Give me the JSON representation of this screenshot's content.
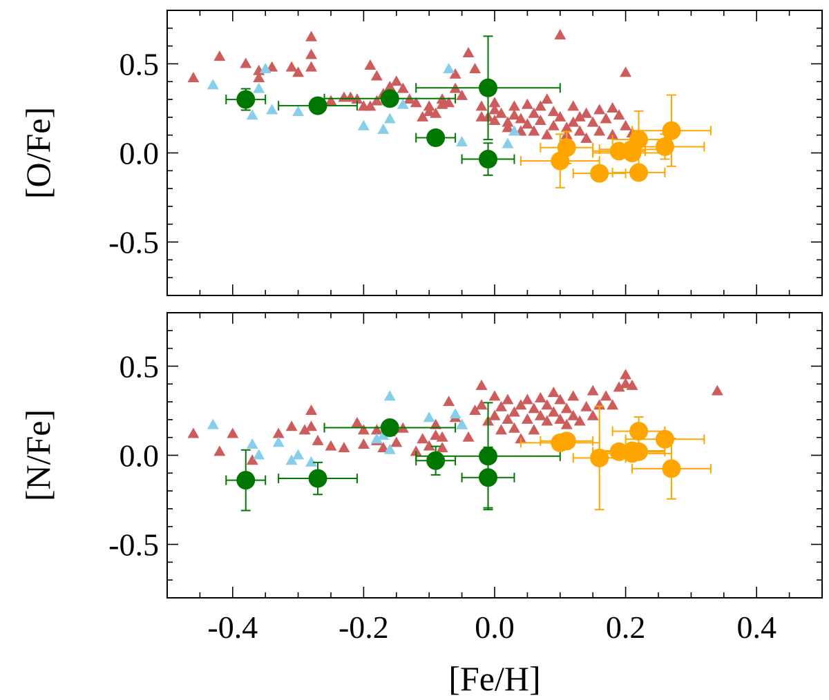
{
  "chart_data": [
    {
      "type": "scatter",
      "ylabel": "[O/Fe]",
      "xlabel": "",
      "xlim": [
        -0.5,
        0.5
      ],
      "ylim": [
        -0.8,
        0.8
      ],
      "x_ticks": [
        "-0.4",
        "-0.2",
        "0.0",
        "0.2",
        "0.4"
      ],
      "y_ticks": [
        "0.5",
        "0.0",
        "-0.5"
      ],
      "y_tick_values": [
        0.5,
        0.0,
        -0.5
      ],
      "series": [
        {
          "marker": "triangle",
          "color": "#cd5c5c",
          "points": [
            [
              -0.46,
              0.42
            ],
            [
              -0.42,
              0.54
            ],
            [
              -0.38,
              0.5
            ],
            [
              -0.36,
              0.46
            ],
            [
              -0.36,
              0.42
            ],
            [
              -0.34,
              0.48
            ],
            [
              -0.31,
              0.48
            ],
            [
              -0.3,
              0.45
            ],
            [
              -0.28,
              0.65
            ],
            [
              -0.28,
              0.55
            ],
            [
              -0.28,
              0.48
            ],
            [
              -0.25,
              0.29
            ],
            [
              -0.23,
              0.31
            ],
            [
              -0.22,
              0.31
            ],
            [
              -0.21,
              0.3
            ],
            [
              -0.2,
              0.26
            ],
            [
              -0.19,
              0.49
            ],
            [
              -0.19,
              0.26
            ],
            [
              -0.18,
              0.43
            ],
            [
              -0.18,
              0.29
            ],
            [
              -0.17,
              0.33
            ],
            [
              -0.16,
              0.37
            ],
            [
              -0.15,
              0.4
            ],
            [
              -0.14,
              0.36
            ],
            [
              -0.13,
              0.3
            ],
            [
              -0.12,
              0.28
            ],
            [
              -0.11,
              0.2
            ],
            [
              -0.1,
              0.26
            ],
            [
              -0.1,
              0.23
            ],
            [
              -0.09,
              0.22
            ],
            [
              -0.08,
              0.3
            ],
            [
              -0.08,
              0.27
            ],
            [
              -0.07,
              0.28
            ],
            [
              -0.06,
              0.44
            ],
            [
              -0.06,
              0.36
            ],
            [
              -0.05,
              0.32
            ],
            [
              -0.04,
              0.56
            ],
            [
              -0.03,
              0.47
            ],
            [
              -0.02,
              0.26
            ],
            [
              -0.02,
              0.2
            ],
            [
              -0.01,
              0.2
            ],
            [
              0.0,
              0.28
            ],
            [
              0.0,
              0.24
            ],
            [
              0.0,
              0.18
            ],
            [
              0.01,
              0.22
            ],
            [
              0.02,
              0.14
            ],
            [
              0.02,
              0.17
            ],
            [
              0.03,
              0.26
            ],
            [
              0.03,
              0.21
            ],
            [
              0.04,
              0.12
            ],
            [
              0.04,
              0.19
            ],
            [
              0.05,
              0.27
            ],
            [
              0.05,
              0.16
            ],
            [
              0.06,
              0.22
            ],
            [
              0.06,
              0.12
            ],
            [
              0.07,
              0.26
            ],
            [
              0.07,
              0.18
            ],
            [
              0.08,
              0.3
            ],
            [
              0.08,
              0.1
            ],
            [
              0.09,
              0.23
            ],
            [
              0.09,
              0.15
            ],
            [
              0.1,
              0.66
            ],
            [
              0.1,
              0.2
            ],
            [
              0.11,
              0.14
            ],
            [
              0.11,
              0.1
            ],
            [
              0.12,
              0.26
            ],
            [
              0.12,
              0.17
            ],
            [
              0.13,
              0.2
            ],
            [
              0.13,
              0.12
            ],
            [
              0.14,
              0.22
            ],
            [
              0.14,
              0.08
            ],
            [
              0.15,
              0.17
            ],
            [
              0.16,
              0.24
            ],
            [
              0.16,
              0.12
            ],
            [
              0.17,
              0.19
            ],
            [
              0.18,
              0.25
            ],
            [
              0.18,
              0.1
            ],
            [
              0.19,
              0.21
            ],
            [
              0.2,
              0.45
            ],
            [
              0.2,
              0.15
            ],
            [
              0.21,
              0.11
            ]
          ]
        },
        {
          "marker": "triangle",
          "color": "#87ceeb",
          "points": [
            [
              -0.43,
              0.38
            ],
            [
              -0.37,
              0.21
            ],
            [
              -0.36,
              0.36
            ],
            [
              -0.35,
              0.47
            ],
            [
              -0.34,
              0.24
            ],
            [
              -0.3,
              0.23
            ],
            [
              -0.2,
              0.15
            ],
            [
              -0.17,
              0.13
            ],
            [
              -0.16,
              0.19
            ],
            [
              -0.14,
              0.27
            ],
            [
              -0.07,
              0.47
            ],
            [
              -0.05,
              0.06
            ],
            [
              0.02,
              0.05
            ],
            [
              0.03,
              0.12
            ]
          ]
        },
        {
          "marker": "circle",
          "color": "#007700",
          "points": [
            {
              "x": -0.38,
              "y": 0.3,
              "xerr": 0.03,
              "yerr": 0.06
            },
            {
              "x": -0.27,
              "y": 0.265,
              "xerr": 0.06,
              "yerr": 0.0
            },
            {
              "x": -0.16,
              "y": 0.305,
              "xerr": 0.1,
              "yerr": 0.0
            },
            {
              "x": -0.09,
              "y": 0.085,
              "xerr": 0.03,
              "yerr": 0.0
            },
            {
              "x": -0.01,
              "y": 0.365,
              "xerr": 0.11,
              "yerr": 0.29
            },
            {
              "x": -0.01,
              "y": -0.035,
              "xerr": 0.04,
              "yerr": 0.09
            }
          ]
        },
        {
          "marker": "circle",
          "color": "#ffa500",
          "points": [
            {
              "x": 0.1,
              "y": -0.045,
              "xerr": 0.06,
              "yerr": 0.15
            },
            {
              "x": 0.11,
              "y": 0.03,
              "xerr": 0.04,
              "yerr": 0.09
            },
            {
              "x": 0.16,
              "y": -0.115,
              "xerr": 0.04,
              "yerr": 0.0
            },
            {
              "x": 0.19,
              "y": 0.01,
              "xerr": 0.04,
              "yerr": 0.0
            },
            {
              "x": 0.21,
              "y": 0.02,
              "xerr": 0.05,
              "yerr": 0.0
            },
            {
              "x": 0.21,
              "y": 0.0,
              "xerr": 0.06,
              "yerr": 0.0
            },
            {
              "x": 0.22,
              "y": 0.075,
              "xerr": 0.04,
              "yerr": 0.16
            },
            {
              "x": 0.22,
              "y": -0.11,
              "xerr": 0.04,
              "yerr": 0.04
            },
            {
              "x": 0.26,
              "y": 0.035,
              "xerr": 0.06,
              "yerr": 0.07
            },
            {
              "x": 0.27,
              "y": 0.125,
              "xerr": 0.06,
              "yerr": 0.2
            }
          ]
        }
      ]
    },
    {
      "type": "scatter",
      "ylabel": "[N/Fe]",
      "xlabel": "[Fe/H]",
      "xlim": [
        -0.5,
        0.5
      ],
      "ylim": [
        -0.8,
        0.8
      ],
      "x_ticks": [
        "-0.4",
        "-0.2",
        "0.0",
        "0.2",
        "0.4"
      ],
      "y_ticks": [
        "0.5",
        "0.0",
        "-0.5"
      ],
      "y_tick_values": [
        0.5,
        0.0,
        -0.5
      ],
      "series": [
        {
          "marker": "triangle",
          "color": "#cd5c5c",
          "points": [
            [
              -0.46,
              0.12
            ],
            [
              -0.42,
              0.02
            ],
            [
              -0.4,
              0.12
            ],
            [
              -0.37,
              -0.03
            ],
            [
              -0.33,
              0.12
            ],
            [
              -0.31,
              0.16
            ],
            [
              -0.29,
              0.14
            ],
            [
              -0.28,
              0.25
            ],
            [
              -0.28,
              0.16
            ],
            [
              -0.27,
              0.08
            ],
            [
              -0.25,
              0.05
            ],
            [
              -0.23,
              0.04
            ],
            [
              -0.21,
              0.18
            ],
            [
              -0.2,
              0.06
            ],
            [
              -0.2,
              0.14
            ],
            [
              -0.18,
              0.08
            ],
            [
              -0.18,
              0.14
            ],
            [
              -0.17,
              0.04
            ],
            [
              -0.16,
              0.13
            ],
            [
              -0.15,
              0.07
            ],
            [
              -0.14,
              0.15
            ],
            [
              -0.12,
              0.02
            ],
            [
              -0.11,
              0.09
            ],
            [
              -0.1,
              0.05
            ],
            [
              -0.09,
              0.11
            ],
            [
              -0.09,
              0.17
            ],
            [
              -0.08,
              0.04
            ],
            [
              -0.08,
              0.1
            ],
            [
              -0.07,
              0.3
            ],
            [
              -0.06,
              0.21
            ],
            [
              -0.05,
              0.17
            ],
            [
              -0.04,
              0.1
            ],
            [
              -0.03,
              0.25
            ],
            [
              -0.02,
              0.39
            ],
            [
              -0.02,
              0.28
            ],
            [
              -0.01,
              0.19
            ],
            [
              0.0,
              0.22
            ],
            [
              0.0,
              0.33
            ],
            [
              0.01,
              0.14
            ],
            [
              0.01,
              0.27
            ],
            [
              0.02,
              0.2
            ],
            [
              0.02,
              0.31
            ],
            [
              0.03,
              0.24
            ],
            [
              0.03,
              0.15
            ],
            [
              0.04,
              0.09
            ],
            [
              0.04,
              0.28
            ],
            [
              0.05,
              0.2
            ],
            [
              0.05,
              0.31
            ],
            [
              0.06,
              0.14
            ],
            [
              0.06,
              0.26
            ],
            [
              0.07,
              0.22
            ],
            [
              0.07,
              0.32
            ],
            [
              0.08,
              0.19
            ],
            [
              0.08,
              0.28
            ],
            [
              0.09,
              0.24
            ],
            [
              0.09,
              0.35
            ],
            [
              0.1,
              0.2
            ],
            [
              0.1,
              0.31
            ],
            [
              0.11,
              0.17
            ],
            [
              0.11,
              0.26
            ],
            [
              0.12,
              0.22
            ],
            [
              0.12,
              0.33
            ],
            [
              0.13,
              0.19
            ],
            [
              0.14,
              0.27
            ],
            [
              0.15,
              0.22
            ],
            [
              0.15,
              0.36
            ],
            [
              0.16,
              0.28
            ],
            [
              0.17,
              0.33
            ],
            [
              0.18,
              0.28
            ],
            [
              0.19,
              0.38
            ],
            [
              0.2,
              0.45
            ],
            [
              0.2,
              0.4
            ],
            [
              0.21,
              0.39
            ],
            [
              0.34,
              0.36
            ]
          ]
        },
        {
          "marker": "triangle",
          "color": "#87ceeb",
          "points": [
            [
              -0.43,
              0.17
            ],
            [
              -0.37,
              0.06
            ],
            [
              -0.36,
              0.0
            ],
            [
              -0.33,
              0.07
            ],
            [
              -0.31,
              -0.03
            ],
            [
              -0.3,
              0.0
            ],
            [
              -0.28,
              -0.04
            ],
            [
              -0.18,
              0.09
            ],
            [
              -0.17,
              0.11
            ],
            [
              -0.16,
              0.33
            ],
            [
              -0.16,
              0.03
            ],
            [
              -0.1,
              0.21
            ],
            [
              -0.06,
              0.23
            ],
            [
              -0.05,
              0.17
            ]
          ]
        },
        {
          "marker": "circle",
          "color": "#007700",
          "points": [
            {
              "x": -0.38,
              "y": -0.14,
              "xerr": 0.03,
              "yerr": 0.17
            },
            {
              "x": -0.27,
              "y": -0.13,
              "xerr": 0.06,
              "yerr": 0.09
            },
            {
              "x": -0.16,
              "y": 0.155,
              "xerr": 0.1,
              "yerr": 0.0
            },
            {
              "x": -0.09,
              "y": -0.03,
              "xerr": 0.03,
              "yerr": 0.08
            },
            {
              "x": -0.01,
              "y": -0.005,
              "xerr": 0.11,
              "yerr": 0.3
            },
            {
              "x": -0.01,
              "y": -0.125,
              "xerr": 0.04,
              "yerr": 0.17
            }
          ]
        },
        {
          "marker": "circle",
          "color": "#ffa500",
          "points": [
            {
              "x": 0.1,
              "y": 0.07,
              "xerr": 0.06,
              "yerr": 0.0
            },
            {
              "x": 0.11,
              "y": 0.08,
              "xerr": 0.04,
              "yerr": 0.0
            },
            {
              "x": 0.16,
              "y": -0.015,
              "xerr": 0.04,
              "yerr": 0.29
            },
            {
              "x": 0.19,
              "y": 0.02,
              "xerr": 0.04,
              "yerr": 0.0
            },
            {
              "x": 0.21,
              "y": 0.025,
              "xerr": 0.05,
              "yerr": 0.0
            },
            {
              "x": 0.21,
              "y": 0.01,
              "xerr": 0.06,
              "yerr": 0.0
            },
            {
              "x": 0.22,
              "y": 0.135,
              "xerr": 0.04,
              "yerr": 0.08
            },
            {
              "x": 0.22,
              "y": 0.02,
              "xerr": 0.04,
              "yerr": 0.0
            },
            {
              "x": 0.26,
              "y": 0.09,
              "xerr": 0.06,
              "yerr": 0.0
            },
            {
              "x": 0.27,
              "y": -0.075,
              "xerr": 0.06,
              "yerr": 0.17
            }
          ]
        }
      ]
    }
  ]
}
